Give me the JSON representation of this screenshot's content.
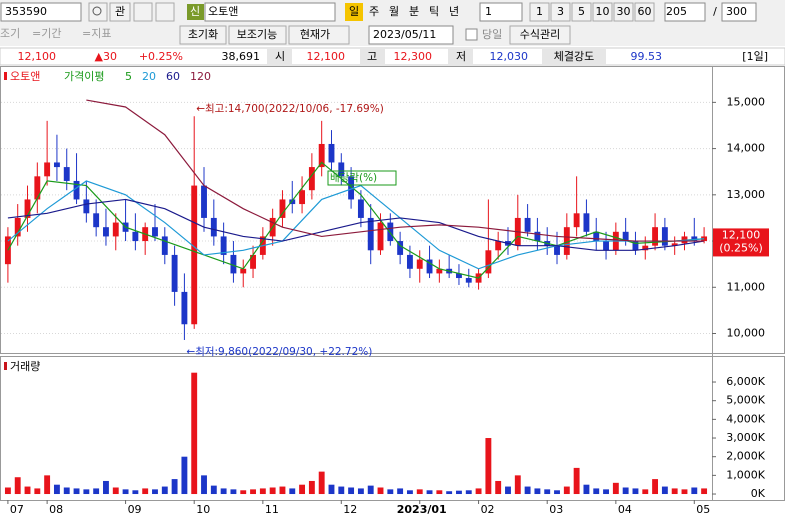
{
  "toolbar": {
    "code": "353590",
    "btn_gwan": "관",
    "badge": "신",
    "name": "오토앤",
    "periods": [
      "일",
      "주",
      "월",
      "분",
      "틱",
      "년"
    ],
    "unit": "1",
    "minutes": [
      "1",
      "3",
      "5",
      "10",
      "30",
      "60"
    ],
    "count": "205",
    "slash": "/",
    "max": "300"
  },
  "toolbar2": {
    "btn_early": "조기",
    "btn_period": "=기간",
    "btn_indicator": "=지표",
    "reset": "초기화",
    "aux": "보조기능",
    "price_type": "현재가",
    "date": "2023/05/11",
    "today": "당일",
    "formula": "수식관리"
  },
  "info": {
    "price": "12,100",
    "change": "▲30",
    "rate": "+0.25%",
    "volume": "38,691",
    "open_label": "시",
    "open": "12,100",
    "high_label": "고",
    "high": "12,300",
    "low_label": "저",
    "low": "12,030",
    "strength_label": "체결강도",
    "strength": "99.53",
    "period": "[1일]"
  },
  "chart_data": [
    {
      "type": "candlestick",
      "title": "오토앤",
      "ma_label": "가격이평",
      "up_color": "#e8141b",
      "down_color": "#1c36c8",
      "grid": true,
      "categories": [
        "07",
        null,
        null,
        null,
        "08",
        null,
        null,
        null,
        null,
        null,
        null,
        null,
        "09",
        null,
        null,
        null,
        null,
        null,
        null,
        "10",
        null,
        null,
        null,
        null,
        null,
        null,
        "11",
        null,
        null,
        null,
        null,
        null,
        null,
        null,
        "12",
        null,
        null,
        null,
        null,
        null,
        null,
        null,
        "2023/01",
        null,
        null,
        null,
        null,
        null,
        "02",
        null,
        null,
        null,
        null,
        null,
        null,
        "03",
        null,
        null,
        null,
        null,
        null,
        null,
        "04",
        null,
        null,
        null,
        null,
        null,
        null,
        null,
        "05",
        null
      ],
      "open": [
        11500,
        12100,
        12500,
        12900,
        13400,
        13700,
        13600,
        13300,
        12900,
        12600,
        12300,
        12100,
        12400,
        12200,
        12000,
        12300,
        12100,
        11700,
        10900,
        10200,
        13200,
        12500,
        12100,
        11700,
        11300,
        11400,
        11700,
        12100,
        12500,
        12900,
        12800,
        13100,
        13600,
        14100,
        13700,
        13400,
        12900,
        12500,
        11800,
        12400,
        12000,
        11700,
        11400,
        11600,
        11300,
        11400,
        11300,
        11200,
        11100,
        11300,
        11800,
        12000,
        11900,
        12500,
        12200,
        12000,
        11900,
        11700,
        12300,
        12600,
        12200,
        12000,
        11800,
        12200,
        12000,
        11800,
        11900,
        12300,
        11900,
        11950,
        12100,
        12000
      ],
      "high": [
        12300,
        12800,
        13200,
        13700,
        14600,
        14300,
        14000,
        13900,
        13300,
        12900,
        12700,
        12600,
        12900,
        12600,
        12400,
        12800,
        12300,
        11900,
        11300,
        14700,
        13600,
        12900,
        12400,
        12000,
        11600,
        11900,
        12300,
        12700,
        13100,
        13300,
        13400,
        13900,
        14600,
        14400,
        13900,
        13600,
        13100,
        12800,
        12600,
        12600,
        12200,
        11900,
        11800,
        11900,
        11600,
        11700,
        11500,
        11400,
        11400,
        12900,
        12200,
        12300,
        13000,
        12800,
        12500,
        12300,
        12200,
        12600,
        13400,
        12900,
        12500,
        12200,
        12400,
        12500,
        12200,
        12100,
        12600,
        12500,
        12100,
        12200,
        12500,
        12300
      ],
      "low": [
        11100,
        11900,
        12200,
        12600,
        13200,
        13300,
        13100,
        12800,
        12400,
        12100,
        11900,
        11800,
        12000,
        11800,
        11700,
        12000,
        11500,
        10600,
        9860,
        10100,
        12200,
        11900,
        11500,
        11100,
        11000,
        11200,
        11600,
        11900,
        12300,
        12600,
        12600,
        12900,
        13400,
        13500,
        13200,
        12700,
        12300,
        11500,
        11700,
        11900,
        11500,
        11200,
        11100,
        11200,
        11100,
        11200,
        11050,
        11000,
        10950,
        11200,
        11600,
        11700,
        11800,
        12100,
        11800,
        11700,
        11500,
        11600,
        12100,
        12100,
        11800,
        11600,
        11700,
        11900,
        11700,
        11600,
        11800,
        11800,
        11700,
        11800,
        11900,
        11950
      ],
      "close": [
        12100,
        12500,
        12900,
        13400,
        13700,
        13600,
        13300,
        12900,
        12600,
        12300,
        12100,
        12400,
        12200,
        12000,
        12300,
        12100,
        11700,
        10900,
        10200,
        13200,
        12500,
        12100,
        11700,
        11300,
        11400,
        11700,
        12100,
        12500,
        12900,
        12800,
        13100,
        13600,
        14100,
        13700,
        13400,
        12900,
        12500,
        11800,
        12400,
        12000,
        11700,
        11400,
        11600,
        11300,
        11400,
        11300,
        11200,
        11100,
        11300,
        11800,
        12000,
        11900,
        12500,
        12200,
        12000,
        11900,
        11700,
        12300,
        12600,
        12200,
        12000,
        11800,
        12200,
        12000,
        11800,
        11900,
        12300,
        11900,
        11950,
        12100,
        12000,
        12100
      ],
      "series": [
        {
          "name": "5",
          "color": "#1a9a1a",
          "x": [
            0,
            4,
            8,
            12,
            16,
            20,
            24,
            28,
            32,
            36,
            40,
            44,
            48,
            52,
            56,
            60,
            64,
            68,
            71
          ],
          "values": [
            11800,
            13300,
            13200,
            12300,
            12000,
            11700,
            11400,
            12600,
            13700,
            13000,
            11900,
            11400,
            11200,
            12100,
            11900,
            12200,
            11950,
            12000,
            12050
          ]
        },
        {
          "name": "20",
          "color": "#1e9ad6",
          "x": [
            0,
            4,
            8,
            12,
            16,
            20,
            24,
            28,
            32,
            36,
            40,
            44,
            48,
            52,
            56,
            60,
            64,
            68,
            71
          ],
          "values": [
            12000,
            12700,
            13300,
            13000,
            12400,
            11700,
            11800,
            12000,
            12900,
            13200,
            12500,
            11800,
            11400,
            11700,
            11900,
            12000,
            12000,
            12000,
            12050
          ]
        },
        {
          "name": "60",
          "color": "#1a1a8c",
          "x": [
            0,
            4,
            8,
            12,
            16,
            20,
            24,
            28,
            32,
            36,
            40,
            44,
            48,
            52,
            56,
            60,
            64,
            68,
            71
          ],
          "values": [
            12500,
            12600,
            12800,
            12900,
            12700,
            12300,
            12100,
            12000,
            12200,
            12400,
            12500,
            12400,
            12100,
            11900,
            11900,
            11800,
            11800,
            11900,
            12000
          ]
        },
        {
          "name": "120",
          "color": "#8c1a3c",
          "x": [
            0,
            4,
            8,
            12,
            16,
            20,
            24,
            28,
            32,
            36,
            40,
            44,
            48,
            52,
            56,
            60,
            64,
            68,
            71
          ],
          "values": [
            null,
            null,
            15050,
            14900,
            14300,
            13200,
            12700,
            12300,
            12100,
            12200,
            12300,
            12350,
            12300,
            12200,
            12100,
            12050,
            12000,
            12000,
            12000
          ]
        }
      ],
      "ylim": [
        9600,
        15700
      ],
      "yticks": [
        {
          "value": 10000,
          "label": "10,000"
        },
        {
          "value": 11000,
          "label": "11,000"
        },
        {
          "value": 12000,
          "label": "12,000"
        },
        {
          "value": 13000,
          "label": "13,000"
        },
        {
          "value": 14000,
          "label": "14,000"
        },
        {
          "value": 15000,
          "label": "15,000"
        }
      ],
      "high_note": "←최고:14,700(2022/10/06, -17.69%)",
      "low_note": "←최저:9,860(2022/09/30, +22.72%)",
      "dividend_note": "배당락(%)",
      "last_label": [
        "12,100",
        "(0.25%)"
      ]
    },
    {
      "type": "bar",
      "title": "거래량",
      "color": "#c8141b",
      "values": [
        350,
        900,
        400,
        300,
        1000,
        500,
        350,
        300,
        250,
        300,
        700,
        350,
        250,
        200,
        300,
        250,
        400,
        800,
        2000,
        6500,
        1000,
        450,
        300,
        250,
        200,
        250,
        300,
        350,
        400,
        300,
        500,
        700,
        1200,
        500,
        400,
        350,
        300,
        450,
        350,
        250,
        300,
        200,
        250,
        200,
        200,
        150,
        180,
        200,
        300,
        3000,
        700,
        400,
        1000,
        400,
        300,
        250,
        200,
        400,
        1400,
        500,
        300,
        250,
        600,
        350,
        300,
        250,
        800,
        400,
        300,
        250,
        350,
        300
      ],
      "ylim": [
        -320,
        7180
      ],
      "yticks": [
        {
          "value": 0,
          "label": "0K"
        },
        {
          "value": 1000,
          "label": "1,000K"
        },
        {
          "value": 2000,
          "label": "2,000K"
        },
        {
          "value": 3000,
          "label": "3,000K"
        },
        {
          "value": 4000,
          "label": "4,000K"
        },
        {
          "value": 5000,
          "label": "5,000K"
        },
        {
          "value": 6000,
          "label": "6,000K"
        }
      ]
    }
  ]
}
